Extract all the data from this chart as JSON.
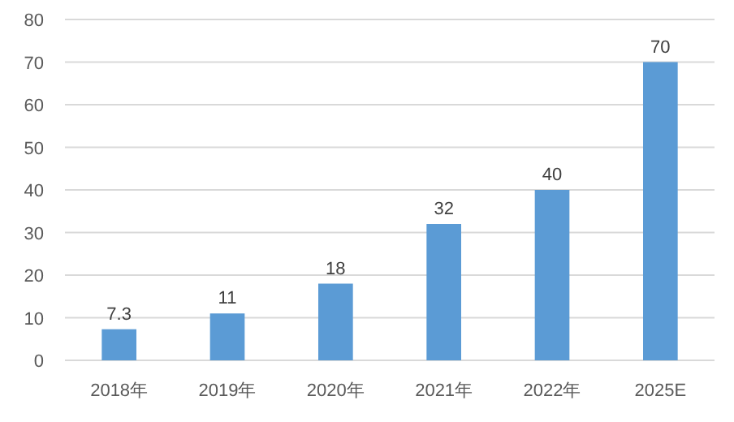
{
  "chart_data": {
    "type": "bar",
    "categories": [
      "2018年",
      "2019年",
      "2020年",
      "2021年",
      "2022年",
      "2025E"
    ],
    "values": [
      7.3,
      11,
      18,
      32,
      40,
      70
    ],
    "color": "#5b9bd5",
    "data_labels": true,
    "ylim": [
      0,
      80
    ],
    "yticks": [
      0,
      10,
      20,
      30,
      40,
      50,
      60,
      70,
      80
    ],
    "grid": "y"
  }
}
